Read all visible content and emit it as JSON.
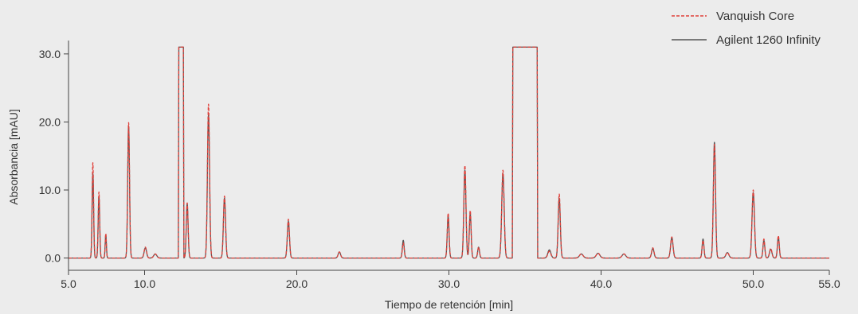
{
  "chart_data": {
    "type": "line",
    "title": "",
    "xlabel": "Tiempo de retención [min]",
    "ylabel": "Absorbancia [mAU]",
    "xlim": [
      5.0,
      55.0
    ],
    "ylim": [
      -1.8,
      31.5
    ],
    "x_ticks": [
      5.0,
      10.0,
      20.0,
      30.0,
      40.0,
      50.0,
      55.0
    ],
    "x_tick_labels": [
      "5.0",
      "10.0",
      "20.0",
      "30.0",
      "40.0",
      "50.0",
      "55.0"
    ],
    "y_ticks": [
      0.0,
      10.0,
      20.0,
      30.0
    ],
    "y_tick_labels": [
      "0.0",
      "10.0",
      "20.0",
      "30.0"
    ],
    "grid": false,
    "legend_position": "top-right",
    "baseline": 0.0,
    "series": [
      {
        "name": "Vanquish Core",
        "color": "#e0403a",
        "dash": "dashed",
        "saturation_level": 31.0,
        "plateaus": [
          [
            12.25,
            12.55
          ],
          [
            34.2,
            35.8
          ]
        ],
        "peaks": [
          {
            "rt": 6.6,
            "height": 14.0,
            "width": 0.05
          },
          {
            "rt": 7.0,
            "height": 9.7,
            "width": 0.05
          },
          {
            "rt": 7.45,
            "height": 3.6,
            "width": 0.04
          },
          {
            "rt": 8.95,
            "height": 19.9,
            "width": 0.06
          },
          {
            "rt": 10.05,
            "height": 1.6,
            "width": 0.08
          },
          {
            "rt": 10.7,
            "height": 0.6,
            "width": 0.1
          },
          {
            "rt": 12.8,
            "height": 8.1,
            "width": 0.06
          },
          {
            "rt": 14.2,
            "height": 22.6,
            "width": 0.07
          },
          {
            "rt": 15.25,
            "height": 9.1,
            "width": 0.07
          },
          {
            "rt": 19.45,
            "height": 5.7,
            "width": 0.07
          },
          {
            "rt": 22.8,
            "height": 0.9,
            "width": 0.08
          },
          {
            "rt": 27.0,
            "height": 2.2,
            "width": 0.06
          },
          {
            "rt": 29.95,
            "height": 6.6,
            "width": 0.06
          },
          {
            "rt": 31.05,
            "height": 13.6,
            "width": 0.07
          },
          {
            "rt": 31.4,
            "height": 7.0,
            "width": 0.06
          },
          {
            "rt": 31.95,
            "height": 1.6,
            "width": 0.06
          },
          {
            "rt": 33.55,
            "height": 12.9,
            "width": 0.08
          },
          {
            "rt": 36.6,
            "height": 1.0,
            "width": 0.1
          },
          {
            "rt": 37.25,
            "height": 9.4,
            "width": 0.07
          },
          {
            "rt": 38.7,
            "height": 0.6,
            "width": 0.12
          },
          {
            "rt": 39.8,
            "height": 0.7,
            "width": 0.12
          },
          {
            "rt": 41.5,
            "height": 0.6,
            "width": 0.12
          },
          {
            "rt": 43.4,
            "height": 1.5,
            "width": 0.08
          },
          {
            "rt": 44.65,
            "height": 3.1,
            "width": 0.08
          },
          {
            "rt": 46.7,
            "height": 2.6,
            "width": 0.06
          },
          {
            "rt": 47.45,
            "height": 16.7,
            "width": 0.07
          },
          {
            "rt": 48.3,
            "height": 0.8,
            "width": 0.1
          },
          {
            "rt": 50.0,
            "height": 10.0,
            "width": 0.08
          },
          {
            "rt": 50.7,
            "height": 2.8,
            "width": 0.06
          },
          {
            "rt": 51.15,
            "height": 1.4,
            "width": 0.08
          },
          {
            "rt": 51.65,
            "height": 3.3,
            "width": 0.06
          }
        ]
      },
      {
        "name": "Agilent 1260 Infinity",
        "color": "#555555",
        "dash": "solid",
        "saturation_level": 31.0,
        "plateaus": [
          [
            12.25,
            12.55
          ],
          [
            34.2,
            35.8
          ]
        ],
        "peaks": [
          {
            "rt": 6.6,
            "height": 12.4,
            "width": 0.05
          },
          {
            "rt": 7.0,
            "height": 9.0,
            "width": 0.05
          },
          {
            "rt": 7.45,
            "height": 3.4,
            "width": 0.04
          },
          {
            "rt": 8.95,
            "height": 19.4,
            "width": 0.06
          },
          {
            "rt": 10.05,
            "height": 1.5,
            "width": 0.08
          },
          {
            "rt": 10.7,
            "height": 0.6,
            "width": 0.1
          },
          {
            "rt": 12.8,
            "height": 8.0,
            "width": 0.06
          },
          {
            "rt": 14.2,
            "height": 21.0,
            "width": 0.07
          },
          {
            "rt": 15.25,
            "height": 8.8,
            "width": 0.07
          },
          {
            "rt": 19.45,
            "height": 5.4,
            "width": 0.07
          },
          {
            "rt": 22.8,
            "height": 0.9,
            "width": 0.08
          },
          {
            "rt": 27.0,
            "height": 2.6,
            "width": 0.06
          },
          {
            "rt": 29.95,
            "height": 6.1,
            "width": 0.06
          },
          {
            "rt": 31.05,
            "height": 12.9,
            "width": 0.07
          },
          {
            "rt": 31.4,
            "height": 6.5,
            "width": 0.06
          },
          {
            "rt": 31.95,
            "height": 1.6,
            "width": 0.06
          },
          {
            "rt": 33.55,
            "height": 12.4,
            "width": 0.08
          },
          {
            "rt": 36.6,
            "height": 1.2,
            "width": 0.1
          },
          {
            "rt": 37.25,
            "height": 8.8,
            "width": 0.07
          },
          {
            "rt": 38.7,
            "height": 0.6,
            "width": 0.12
          },
          {
            "rt": 39.8,
            "height": 0.7,
            "width": 0.12
          },
          {
            "rt": 41.5,
            "height": 0.6,
            "width": 0.12
          },
          {
            "rt": 43.4,
            "height": 1.4,
            "width": 0.08
          },
          {
            "rt": 44.65,
            "height": 3.0,
            "width": 0.08
          },
          {
            "rt": 46.7,
            "height": 2.8,
            "width": 0.06
          },
          {
            "rt": 47.45,
            "height": 17.0,
            "width": 0.07
          },
          {
            "rt": 48.3,
            "height": 0.8,
            "width": 0.1
          },
          {
            "rt": 50.0,
            "height": 9.6,
            "width": 0.08
          },
          {
            "rt": 50.7,
            "height": 2.6,
            "width": 0.06
          },
          {
            "rt": 51.15,
            "height": 1.3,
            "width": 0.08
          },
          {
            "rt": 51.65,
            "height": 3.1,
            "width": 0.06
          }
        ]
      }
    ]
  }
}
